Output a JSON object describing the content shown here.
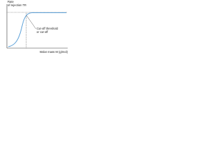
{
  "y_axis_label": [
    "Rate",
    "of rejection TR"
  ],
  "annotation": [
    "Cut-off threshold",
    "or cut-off"
  ],
  "x_axis_label": "Molar mass M (g/mol)"
}
